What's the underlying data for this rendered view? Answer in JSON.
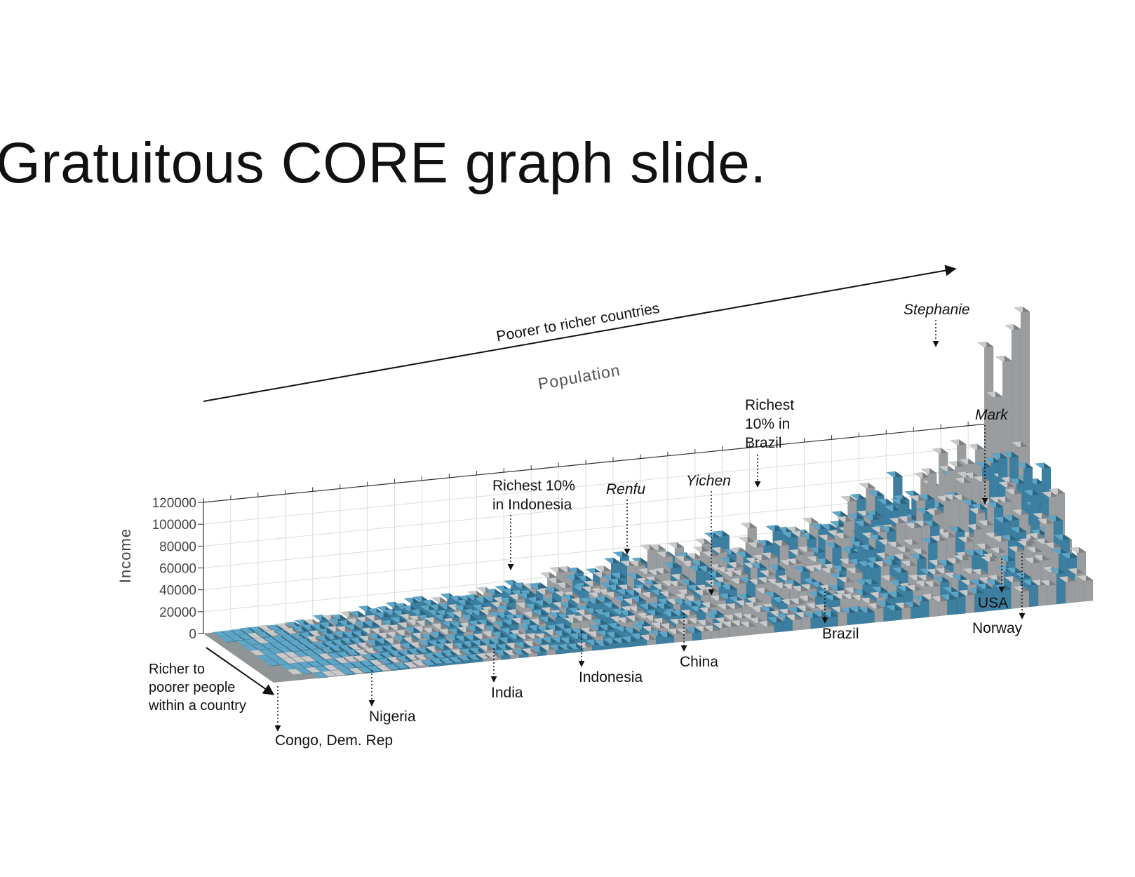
{
  "slide": {
    "title": "Gratuitous CORE graph slide."
  },
  "chart_data": {
    "type": "3d-bar",
    "title": "",
    "ylabel": "Income",
    "population_label": "Population",
    "top_arrow_label": "Poorer to richer countries",
    "depth_arrow_label": "Richer to poorer people within a country",
    "depth_arrow_lines": [
      "Richer to",
      "poorer people",
      "within a country"
    ],
    "yticks": [
      0,
      20000,
      40000,
      60000,
      80000,
      100000,
      120000
    ],
    "ylim": [
      0,
      120000
    ],
    "colors": {
      "bar_blue": "#3d7fa0",
      "bar_gray": "#9a9d9f",
      "gridline": "#dcdcdc",
      "text": "#222222"
    },
    "countries": [
      {
        "name": "Congo, Dem. Rep",
        "x": 0.085,
        "income": 2000
      },
      {
        "name": "Nigeria",
        "x": 0.21,
        "income": 9000
      },
      {
        "name": "India",
        "x": 0.37,
        "income": 17000
      },
      {
        "name": "Indonesia",
        "x": 0.47,
        "income": 26000
      },
      {
        "name": "China",
        "x": 0.62,
        "income": 38000
      },
      {
        "name": "Brazil",
        "x": 0.8,
        "income": 60000
      },
      {
        "name": "USA",
        "x": 0.97,
        "income": 100000
      },
      {
        "name": "Norway",
        "x": 1.0,
        "income": 110000
      }
    ],
    "annotations": {
      "richest_indonesia": [
        "Richest 10%",
        "in Indonesia"
      ],
      "renfu": "Renfu",
      "yichen": "Yichen",
      "richest_brazil": [
        "Richest",
        "10% in",
        "Brazil"
      ],
      "stephanie": "Stephanie",
      "mark": "Mark"
    }
  }
}
